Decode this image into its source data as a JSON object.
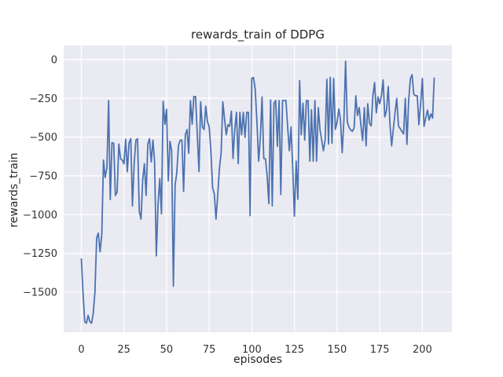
{
  "chart_data": {
    "type": "line",
    "title": "rewards_train of DDPG",
    "xlabel": "episodes",
    "ylabel": "rewards_train",
    "x_ticks": [
      0,
      25,
      50,
      75,
      100,
      125,
      150,
      175,
      200
    ],
    "y_ticks": [
      0,
      -250,
      -500,
      -750,
      -1000,
      -1250,
      -1500
    ],
    "xlim": [
      -10.35,
      217.35
    ],
    "ylim": [
      -1759,
      91
    ],
    "grid": true,
    "legend_position": "none",
    "line_color": "#4c72b0",
    "plot_bg_color": "#eaeaf2",
    "grid_color": "#ffffff",
    "series": [
      {
        "name": "rewards_train",
        "x_start": 0,
        "x_step": 1,
        "values": [
          -1286,
          -1500,
          -1690,
          -1700,
          -1650,
          -1690,
          -1700,
          -1640,
          -1500,
          -1150,
          -1120,
          -1240,
          -1130,
          -648,
          -760,
          -700,
          -265,
          -903,
          -536,
          -540,
          -876,
          -855,
          -544,
          -640,
          -648,
          -672,
          -514,
          -723,
          -536,
          -510,
          -944,
          -672,
          -519,
          -510,
          -978,
          -1029,
          -774,
          -672,
          -876,
          -544,
          -510,
          -660,
          -519,
          -660,
          -1267,
          -937,
          -767,
          -995,
          -270,
          -417,
          -320,
          -782,
          -527,
          -587,
          -1462,
          -808,
          -731,
          -553,
          -520,
          -520,
          -850,
          -485,
          -451,
          -604,
          -264,
          -417,
          -238,
          -238,
          -485,
          -723,
          -272,
          -434,
          -451,
          -300,
          -400,
          -434,
          -587,
          -825,
          -867,
          -1029,
          -876,
          -700,
          -600,
          -272,
          -383,
          -485,
          -420,
          -430,
          -332,
          -638,
          -451,
          -340,
          -672,
          -340,
          -485,
          -340,
          -502,
          -340,
          -340,
          -1007,
          -120,
          -116,
          -190,
          -400,
          -655,
          -500,
          -241,
          -638,
          -640,
          -752,
          -930,
          -260,
          -944,
          -280,
          -264,
          -560,
          -264,
          -870,
          -264,
          -264,
          -264,
          -434,
          -587,
          -434,
          -706,
          -1010,
          -655,
          -901,
          -136,
          -485,
          -281,
          -519,
          -264,
          -264,
          -655,
          -323,
          -655,
          -264,
          -655,
          -310,
          -454,
          -522,
          -587,
          -519,
          -127,
          -545,
          -114,
          -539,
          -122,
          -451,
          -403,
          -318,
          -386,
          -600,
          -386,
          -10,
          -403,
          -437,
          -454,
          -462,
          -440,
          -233,
          -360,
          -309,
          -428,
          -522,
          -309,
          -556,
          -284,
          -411,
          -428,
          -233,
          -148,
          -343,
          -241,
          -284,
          -233,
          -131,
          -369,
          -326,
          -173,
          -411,
          -556,
          -445,
          -343,
          -250,
          -428,
          -445,
          -462,
          -479,
          -250,
          -547,
          -258,
          -122,
          -97,
          -224,
          -233,
          -233,
          -420,
          -284,
          -122,
          -430,
          -377,
          -326,
          -390,
          -350,
          -377,
          -119
        ]
      }
    ]
  }
}
